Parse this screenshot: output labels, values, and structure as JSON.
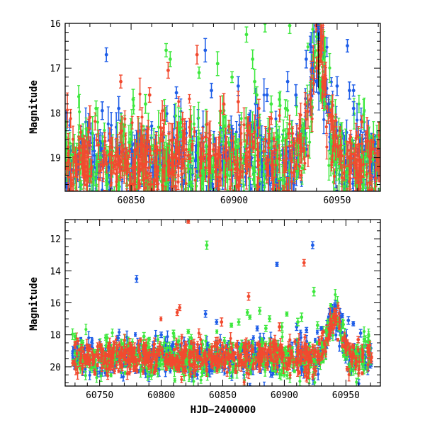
{
  "figure": {
    "x_axis_title": "HJD−2400000",
    "colors": {
      "blue": "#1f5ee8",
      "green": "#3ee83e",
      "red": "#f24a2f",
      "frame": "#000000"
    }
  },
  "chart_data": [
    {
      "type": "scatter",
      "panel": "top",
      "ylabel": "Magnitude",
      "xlabel": "",
      "xlim": [
        60818,
        60971
      ],
      "ylim": [
        19.75,
        16.0
      ],
      "y_inverted": true,
      "xticks": [
        60850,
        60900,
        60950
      ],
      "xtick_labels": [
        "60850",
        "60900",
        "60950"
      ],
      "yticks": [
        16,
        17,
        18,
        19
      ],
      "ytick_labels": [
        "16",
        "17",
        "18",
        "19"
      ],
      "baseline": {
        "from_x": 60818,
        "to_x": 60971,
        "magnitude": 19.1,
        "scatter": 0.45
      },
      "peak": {
        "x": 60941,
        "magnitude": 16.25,
        "width_days": 4
      },
      "series": [
        {
          "name": "blue",
          "color": "#1f5ee8",
          "highlight_points": [
            {
              "x": 60838,
              "y": 16.7
            },
            {
              "x": 60941,
              "y": 16.2
            },
            {
              "x": 60941,
              "y": 16.25
            },
            {
              "x": 60955,
              "y": 16.5
            },
            {
              "x": 60935,
              "y": 16.8
            },
            {
              "x": 60938,
              "y": 17.0
            },
            {
              "x": 60886,
              "y": 16.6
            },
            {
              "x": 60940,
              "y": 17.3
            },
            {
              "x": 60950,
              "y": 17.4
            },
            {
              "x": 60956,
              "y": 17.5
            },
            {
              "x": 60958,
              "y": 17.5
            },
            {
              "x": 60926,
              "y": 17.3
            },
            {
              "x": 60930,
              "y": 17.6
            },
            {
              "x": 60872,
              "y": 17.55
            },
            {
              "x": 60889,
              "y": 17.5
            },
            {
              "x": 60902,
              "y": 17.4
            },
            {
              "x": 60916,
              "y": 17.6
            },
            {
              "x": 60946,
              "y": 17.8
            },
            {
              "x": 60958,
              "y": 17.9
            },
            {
              "x": 60836,
              "y": 17.95
            },
            {
              "x": 60844,
              "y": 17.9
            }
          ]
        },
        {
          "name": "green",
          "color": "#3ee83e",
          "highlight_points": [
            {
              "x": 60915,
              "y": 16.0
            },
            {
              "x": 60927,
              "y": 16.05
            },
            {
              "x": 60906,
              "y": 16.25
            },
            {
              "x": 60867,
              "y": 16.6
            },
            {
              "x": 60869,
              "y": 16.8
            },
            {
              "x": 60892,
              "y": 16.9
            },
            {
              "x": 60909,
              "y": 16.8
            },
            {
              "x": 60883,
              "y": 17.1
            },
            {
              "x": 60899,
              "y": 17.2
            },
            {
              "x": 60910,
              "y": 17.3
            },
            {
              "x": 60851,
              "y": 17.7
            },
            {
              "x": 60857,
              "y": 17.8
            },
            {
              "x": 60911,
              "y": 17.6
            },
            {
              "x": 60918,
              "y": 17.8
            },
            {
              "x": 60922,
              "y": 17.7
            },
            {
              "x": 60925,
              "y": 17.9
            },
            {
              "x": 60833,
              "y": 17.9
            },
            {
              "x": 60895,
              "y": 17.95
            },
            {
              "x": 60942,
              "y": 17.5
            },
            {
              "x": 60944,
              "y": 17.8
            }
          ]
        },
        {
          "name": "red",
          "color": "#f24a2f",
          "highlight_points": [
            {
              "x": 60882,
              "y": 16.7
            },
            {
              "x": 60868,
              "y": 17.05
            },
            {
              "x": 60845,
              "y": 17.3
            },
            {
              "x": 60941,
              "y": 16.6
            },
            {
              "x": 60942,
              "y": 16.7
            },
            {
              "x": 60940,
              "y": 17.0
            },
            {
              "x": 60943,
              "y": 17.3
            },
            {
              "x": 60859,
              "y": 17.6
            },
            {
              "x": 60895,
              "y": 17.8
            },
            {
              "x": 60912,
              "y": 17.9
            },
            {
              "x": 60937,
              "y": 17.7
            },
            {
              "x": 60962,
              "y": 18.2
            },
            {
              "x": 60830,
              "y": 18.1
            },
            {
              "x": 60902,
              "y": 17.75
            }
          ]
        }
      ]
    },
    {
      "type": "scatter",
      "panel": "bottom",
      "ylabel": "Magnitude",
      "xlabel": "HJD−2400000",
      "xlim": [
        60722,
        60978
      ],
      "ylim": [
        21.2,
        10.8
      ],
      "y_inverted": true,
      "xticks": [
        60750,
        60800,
        60850,
        60900,
        60950
      ],
      "xtick_labels": [
        "60750",
        "60800",
        "60850",
        "60900",
        "60950"
      ],
      "yticks": [
        12,
        14,
        16,
        18,
        20
      ],
      "ytick_labels": [
        "12",
        "14",
        "16",
        "18",
        "20"
      ],
      "baseline": {
        "from_x": 60728,
        "to_x": 60971,
        "magnitude": 19.4,
        "scatter": 0.5
      },
      "peak": {
        "x": 60941,
        "magnitude": 16.3,
        "width_days": 5
      },
      "series": [
        {
          "name": "blue",
          "color": "#1f5ee8",
          "highlight_points": [
            {
              "x": 60780,
              "y": 14.5
            },
            {
              "x": 60894,
              "y": 13.6
            },
            {
              "x": 60923,
              "y": 12.4
            },
            {
              "x": 60941,
              "y": 16.2
            },
            {
              "x": 60947,
              "y": 16.8
            },
            {
              "x": 60939,
              "y": 16.5
            },
            {
              "x": 60952,
              "y": 17.1
            },
            {
              "x": 60956,
              "y": 17.3
            },
            {
              "x": 60836,
              "y": 16.7
            },
            {
              "x": 60845,
              "y": 17.2
            },
            {
              "x": 60878,
              "y": 17.6
            },
            {
              "x": 60910,
              "y": 17.5
            },
            {
              "x": 60918,
              "y": 17.7
            },
            {
              "x": 60930,
              "y": 17.6
            },
            {
              "x": 60962,
              "y": 17.9
            },
            {
              "x": 60800,
              "y": 18.0
            },
            {
              "x": 60765,
              "y": 18.2
            }
          ]
        },
        {
          "name": "green",
          "color": "#3ee83e",
          "highlight_points": [
            {
              "x": 60837,
              "y": 12.4
            },
            {
              "x": 60924,
              "y": 15.3
            },
            {
              "x": 60870,
              "y": 16.6
            },
            {
              "x": 60872,
              "y": 16.9
            },
            {
              "x": 60880,
              "y": 16.5
            },
            {
              "x": 60888,
              "y": 17.0
            },
            {
              "x": 60902,
              "y": 16.7
            },
            {
              "x": 60911,
              "y": 17.2
            },
            {
              "x": 60914,
              "y": 16.9
            },
            {
              "x": 60857,
              "y": 17.4
            },
            {
              "x": 60863,
              "y": 17.2
            },
            {
              "x": 60885,
              "y": 17.6
            },
            {
              "x": 60898,
              "y": 17.5
            },
            {
              "x": 60927,
              "y": 17.4
            },
            {
              "x": 60934,
              "y": 17.7
            },
            {
              "x": 60822,
              "y": 17.8
            },
            {
              "x": 60810,
              "y": 17.9
            },
            {
              "x": 60730,
              "y": 18.1
            },
            {
              "x": 60756,
              "y": 18.2
            },
            {
              "x": 60786,
              "y": 18.1
            }
          ]
        },
        {
          "name": "red",
          "color": "#f24a2f",
          "highlight_points": [
            {
              "x": 60822,
              "y": 10.9
            },
            {
              "x": 60916,
              "y": 13.5
            },
            {
              "x": 60813,
              "y": 16.6
            },
            {
              "x": 60815,
              "y": 16.3
            },
            {
              "x": 60871,
              "y": 15.6
            },
            {
              "x": 60941,
              "y": 16.5
            },
            {
              "x": 60940,
              "y": 16.9
            },
            {
              "x": 60942,
              "y": 17.2
            },
            {
              "x": 60849,
              "y": 17.2
            },
            {
              "x": 60896,
              "y": 17.5
            },
            {
              "x": 60931,
              "y": 17.9
            },
            {
              "x": 60960,
              "y": 18.3
            }
          ]
        }
      ]
    }
  ]
}
